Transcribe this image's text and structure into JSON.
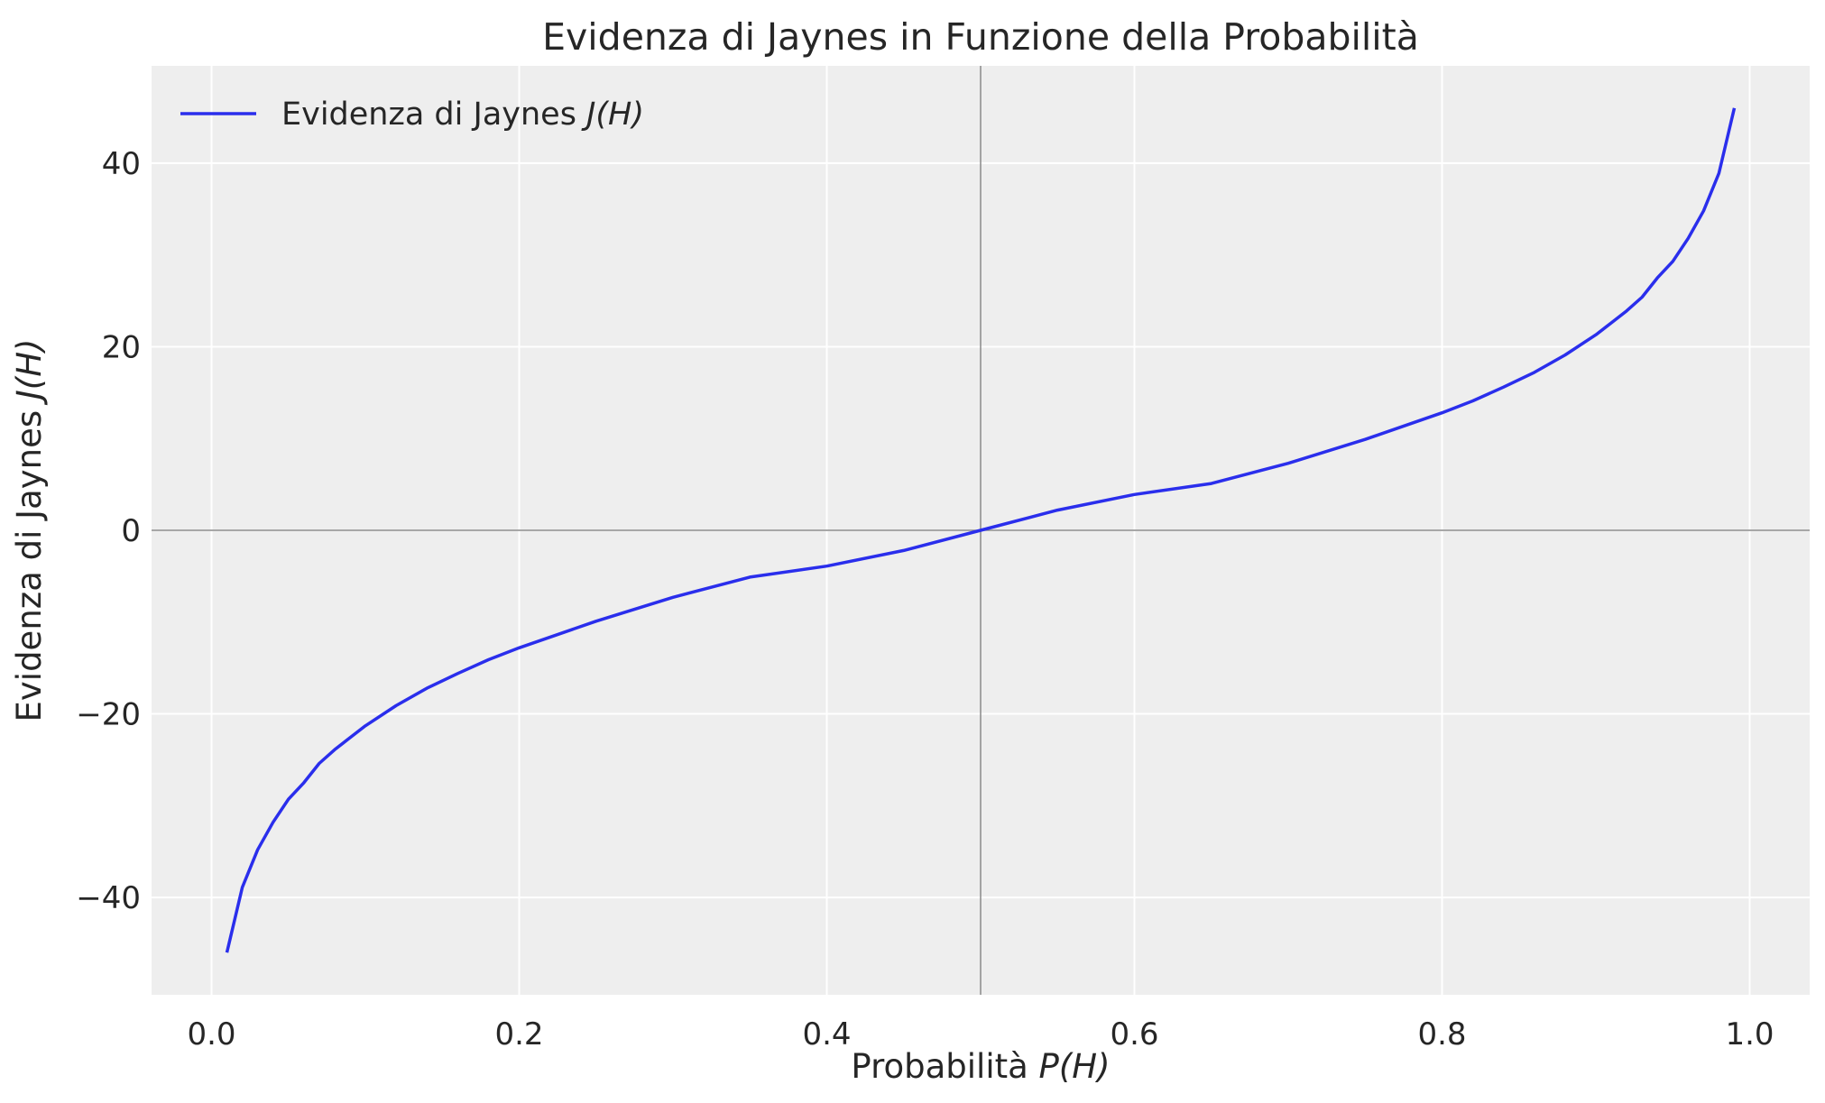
{
  "chart_data": {
    "type": "line",
    "title": "Evidenza di Jaynes in Funzione della Probabilità",
    "xlabel": {
      "prefix": "Probabilità ",
      "math": "P(H)"
    },
    "ylabel": {
      "prefix": "Evidenza di Jaynes ",
      "math": "J(H)"
    },
    "xlim": [
      -0.039,
      1.039
    ],
    "ylim": [
      -50.6,
      50.6
    ],
    "xticks": [
      0.0,
      0.2,
      0.4,
      0.6,
      0.8,
      1.0
    ],
    "xtick_labels": [
      "0.0",
      "0.2",
      "0.4",
      "0.6",
      "0.8",
      "1.0"
    ],
    "yticks": [
      -40,
      -20,
      0,
      20,
      40
    ],
    "ytick_labels": [
      "−40",
      "−20",
      "0",
      "20",
      "40"
    ],
    "grid": true,
    "reference_lines": {
      "horizontal_y": 0,
      "vertical_x": 0.5
    },
    "legend_position": "top-left",
    "series": [
      {
        "name": {
          "prefix": "Evidenza di Jaynes ",
          "math": "J(H)"
        },
        "color": "#2a2eec",
        "x": [
          0.01,
          0.02,
          0.03,
          0.04,
          0.05,
          0.06,
          0.07,
          0.08,
          0.09,
          0.1,
          0.12,
          0.14,
          0.16,
          0.18,
          0.2,
          0.25,
          0.3,
          0.35,
          0.4,
          0.45,
          0.5,
          0.55,
          0.6,
          0.65,
          0.7,
          0.75,
          0.8,
          0.82,
          0.84,
          0.86,
          0.88,
          0.9,
          0.91,
          0.92,
          0.93,
          0.94,
          0.95,
          0.96,
          0.97,
          0.98,
          0.99
        ],
        "y": [
          -46.0,
          -38.9,
          -34.8,
          -31.8,
          -29.3,
          -27.5,
          -25.4,
          -23.9,
          -22.6,
          -21.3,
          -19.1,
          -17.2,
          -15.6,
          -14.1,
          -12.8,
          -9.9,
          -7.3,
          -5.1,
          -3.9,
          -2.2,
          0.0,
          2.2,
          3.9,
          5.1,
          7.3,
          9.9,
          12.8,
          14.1,
          15.6,
          17.2,
          19.1,
          21.3,
          22.6,
          23.9,
          25.4,
          27.5,
          29.3,
          31.8,
          34.8,
          38.9,
          46.0
        ]
      }
    ]
  }
}
